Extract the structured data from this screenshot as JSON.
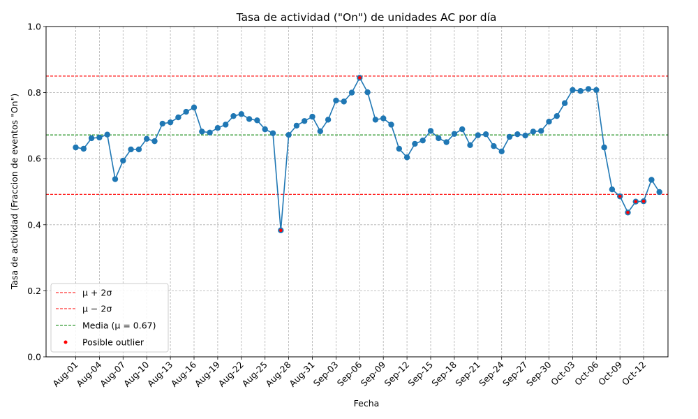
{
  "chart_data": {
    "type": "line",
    "title": "Tasa de actividad (\"On\") de unidades AC por día",
    "xlabel": "Fecha",
    "ylabel": "Tasa de actividad (Fraccion de eventos \"On\")",
    "ylim": [
      0.0,
      1.0
    ],
    "yticks": [
      "0.0",
      "0.2",
      "0.4",
      "0.6",
      "0.8",
      "1.0"
    ],
    "yticks_values": [
      0.0,
      0.2,
      0.4,
      0.6,
      0.8,
      1.0
    ],
    "xtick_labels": [
      "Aug-01",
      "Aug-04",
      "Aug-07",
      "Aug-10",
      "Aug-13",
      "Aug-16",
      "Aug-19",
      "Aug-22",
      "Aug-25",
      "Aug-28",
      "Aug-31",
      "Sep-03",
      "Sep-06",
      "Sep-09",
      "Sep-12",
      "Sep-15",
      "Sep-18",
      "Sep-21",
      "Sep-24",
      "Sep-27",
      "Sep-30",
      "Oct-03",
      "Oct-06",
      "Oct-09",
      "Oct-12"
    ],
    "x_start": "Aug-01",
    "grid": true,
    "legend_position": "lower-left",
    "series": [
      {
        "color": "#1f77b4",
        "values": [
          0.634,
          0.63,
          0.662,
          0.664,
          0.673,
          0.538,
          0.594,
          0.628,
          0.628,
          0.66,
          0.653,
          0.706,
          0.71,
          0.725,
          0.742,
          0.755,
          0.682,
          0.679,
          0.693,
          0.703,
          0.729,
          0.735,
          0.72,
          0.716,
          0.689,
          0.677,
          0.383,
          0.672,
          0.7,
          0.714,
          0.727,
          0.683,
          0.718,
          0.776,
          0.773,
          0.8,
          0.845,
          0.801,
          0.718,
          0.722,
          0.703,
          0.63,
          0.604,
          0.645,
          0.655,
          0.684,
          0.662,
          0.65,
          0.675,
          0.689,
          0.641,
          0.671,
          0.674,
          0.638,
          0.622,
          0.666,
          0.674,
          0.67,
          0.682,
          0.684,
          0.712,
          0.729,
          0.768,
          0.808,
          0.805,
          0.811,
          0.808,
          0.634,
          0.507,
          0.486,
          0.437,
          0.47,
          0.471,
          0.536,
          0.499
        ]
      }
    ],
    "reference_lines": [
      {
        "label": "$\\mu + 2\\sigma$",
        "display": "μ + 2σ",
        "value": 0.85,
        "color": "#ff0000",
        "style": "dashed"
      },
      {
        "label": "$\\mu - 2\\sigma$",
        "display": "μ − 2σ",
        "value": 0.492,
        "color": "#ff0000",
        "style": "dashed"
      },
      {
        "label": "Media ($\\mu =$ 0.67)",
        "display": "Media (μ =  0.67)",
        "value": 0.672,
        "color": "#008000",
        "style": "dashed"
      }
    ],
    "outliers": {
      "label": "Posible outlier",
      "color": "#ff0000",
      "indices": [
        26,
        36,
        69,
        70,
        71,
        72
      ],
      "values": [
        0.383,
        0.845,
        0.486,
        0.437,
        0.47,
        0.471
      ]
    }
  }
}
